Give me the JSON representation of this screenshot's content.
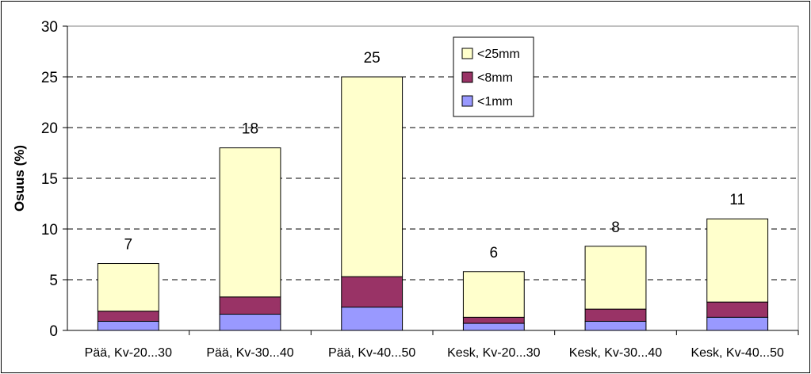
{
  "chart_data": {
    "type": "bar",
    "stacked": true,
    "ylabel": "Osuus (%)",
    "ylim": [
      0,
      30
    ],
    "yticks": [
      0,
      5,
      10,
      15,
      20,
      25,
      30
    ],
    "grid": "horizontal dashed",
    "legend_position": "top-center",
    "categories": [
      "Pää, Kv-20...30",
      "Pää, Kv-30...40",
      "Pää, Kv-40...50",
      "Kesk, Kv-20...30",
      "Kesk, Kv-30...40",
      "Kesk, Kv-40...50"
    ],
    "total_labels": [
      "7",
      "18",
      "25",
      "6",
      "8",
      "11"
    ],
    "series": [
      {
        "name": "<1mm",
        "color": "#9999FF",
        "values": [
          0.9,
          1.6,
          2.3,
          0.7,
          0.9,
          1.3
        ]
      },
      {
        "name": "<8mm",
        "color": "#993366",
        "values": [
          1.0,
          1.7,
          3.0,
          0.6,
          1.2,
          1.5
        ]
      },
      {
        "name": "<25mm",
        "color": "#FFFFCC",
        "values": [
          4.7,
          14.7,
          19.7,
          4.5,
          6.2,
          8.2
        ]
      }
    ],
    "legend_order": [
      "<25mm",
      "<8mm",
      "<1mm"
    ]
  }
}
